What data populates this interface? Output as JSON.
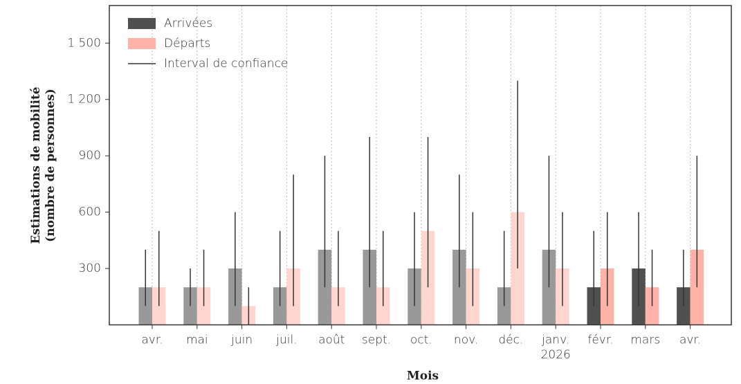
{
  "chart_data": {
    "type": "bar",
    "y_label": "Estimations de mobilité\n(nombre de personnes)",
    "x_label": "Mois",
    "categories": [
      "avr.",
      "mai",
      "juin",
      "juil.",
      "août",
      "sept.",
      "oct.",
      "nov.",
      "déc.",
      "janv.\n2026",
      "févr.",
      "mars",
      "avr."
    ],
    "series": [
      {
        "name": "Arrivées",
        "color": "#505050",
        "colors": [
          "#999999",
          "#999999",
          "#999999",
          "#999999",
          "#999999",
          "#999999",
          "#999999",
          "#999999",
          "#999999",
          "#999999",
          "#505050",
          "#505050",
          "#505050"
        ],
        "values": [
          200,
          200,
          300,
          200,
          400,
          400,
          300,
          400,
          200,
          400,
          200,
          300,
          200
        ],
        "ci": [
          [
            100,
            400
          ],
          [
            100,
            300
          ],
          [
            100,
            600
          ],
          [
            100,
            500
          ],
          [
            200,
            900
          ],
          [
            200,
            1000
          ],
          [
            100,
            600
          ],
          [
            200,
            800
          ],
          [
            100,
            500
          ],
          [
            200,
            900
          ],
          [
            100,
            500
          ],
          [
            100,
            600
          ],
          [
            100,
            400
          ]
        ]
      },
      {
        "name": "Départs",
        "color": "#ffb3a8",
        "colors": [
          "#ffd5d0",
          "#ffd5d0",
          "#ffd5d0",
          "#ffd5d0",
          "#ffd5d0",
          "#ffd5d0",
          "#ffd5d0",
          "#ffd5d0",
          "#ffd5d0",
          "#ffd5d0",
          "#ffb3a8",
          "#ffb3a8",
          "#ffb3a8"
        ],
        "values": [
          200,
          200,
          100,
          300,
          200,
          200,
          500,
          300,
          600,
          300,
          300,
          200,
          400
        ],
        "ci": [
          [
            100,
            500
          ],
          [
            100,
            400
          ],
          [
            0,
            200
          ],
          [
            100,
            800
          ],
          [
            100,
            500
          ],
          [
            100,
            500
          ],
          [
            200,
            1000
          ],
          [
            100,
            600
          ],
          [
            300,
            1300
          ],
          [
            100,
            600
          ],
          [
            100,
            600
          ],
          [
            100,
            400
          ],
          [
            200,
            900
          ]
        ]
      }
    ],
    "ci_label": "Interval de confiance",
    "ci_color": "#333333",
    "ylim": [
      0,
      1700
    ],
    "yticks": [
      300,
      600,
      900,
      {
        "value": 1200,
        "label": "1 200"
      },
      {
        "value": 1500,
        "label": "1 500"
      }
    ],
    "grid": "x",
    "legend": "upper left"
  }
}
